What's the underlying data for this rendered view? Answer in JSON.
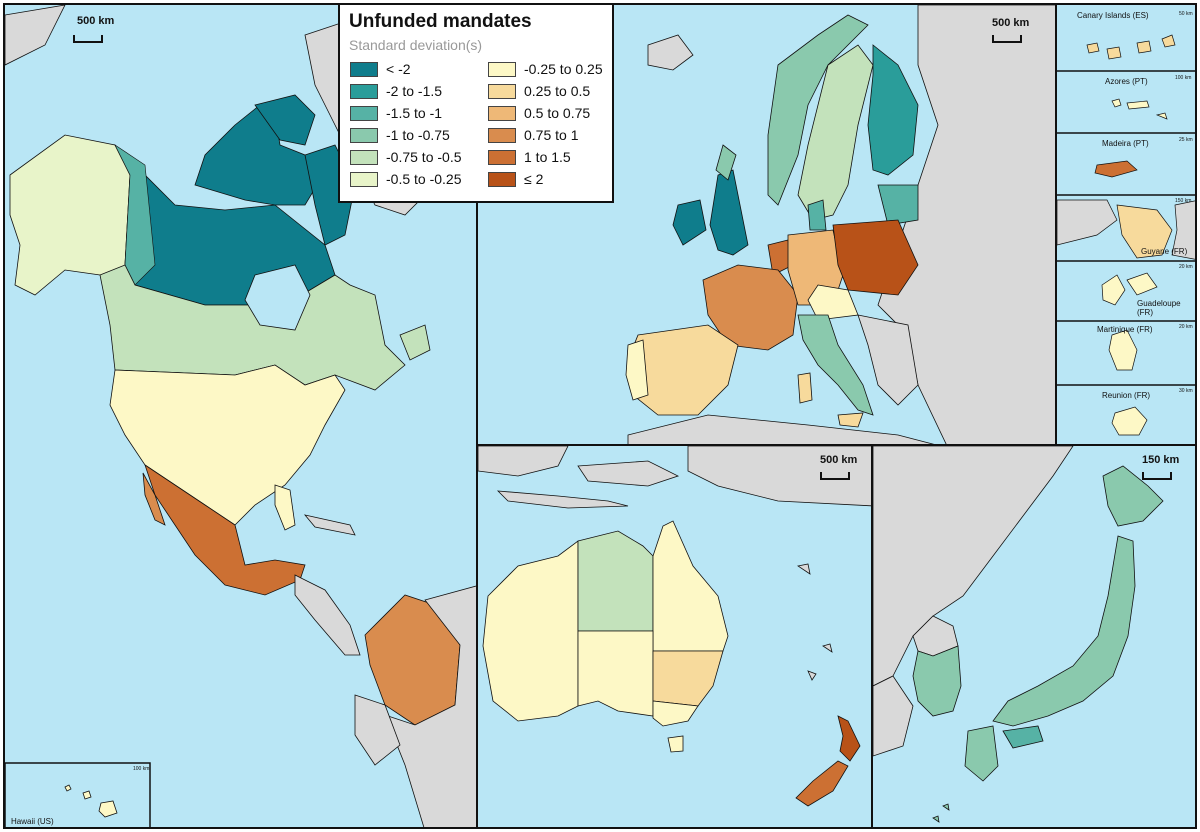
{
  "legend": {
    "title": "Unfunded mandates",
    "subtitle": "Standard deviation(s)",
    "items": [
      {
        "label": "< -2",
        "color": "#0f7d8c"
      },
      {
        "label": "-2 to -1.5",
        "color": "#2a9d9a"
      },
      {
        "label": "-1.5 to -1",
        "color": "#56b2a5"
      },
      {
        "label": "-1 to -0.75",
        "color": "#8ac9ad"
      },
      {
        "label": "-0.75 to -0.5",
        "color": "#c3e2bb"
      },
      {
        "label": "-0.5 to -0.25",
        "color": "#e8f4c9"
      },
      {
        "label": "-0.25 to 0.25",
        "color": "#fdf8c6"
      },
      {
        "label": "0.25 to 0.5",
        "color": "#f7da9c"
      },
      {
        "label": "0.5 to 0.75",
        "color": "#eeb877"
      },
      {
        "label": "0.75 to 1",
        "color": "#d98c4e"
      },
      {
        "label": "1 to 1.5",
        "color": "#cc7033"
      },
      {
        "label": "≤ 2",
        "color": "#b85218"
      }
    ]
  },
  "scales": {
    "north_america": "500 km",
    "europe": "500 km",
    "australia": "500 km",
    "japan_korea": "150 km",
    "hawaii": "100 km",
    "canary": "50 km",
    "azores": "100 km",
    "madeira": "25 km",
    "guyane": "150 km",
    "guadeloupe": "20 km",
    "martinique": "20 km",
    "reunion": "30 km"
  },
  "insets": {
    "hawaii": "Hawaii (US)",
    "canary": "Canary Islands (ES)",
    "azores": "Azores (PT)",
    "madeira": "Madeira (PT)",
    "guyane": "Guyane (FR)",
    "guadeloupe": "Guadeloupe (FR)",
    "martinique": "Martinique (FR)",
    "reunion": "Reunion (FR)"
  },
  "colors": {
    "ocean": "#b9e6f5",
    "other_land": "#d9d9d9",
    "border": "#111111"
  }
}
